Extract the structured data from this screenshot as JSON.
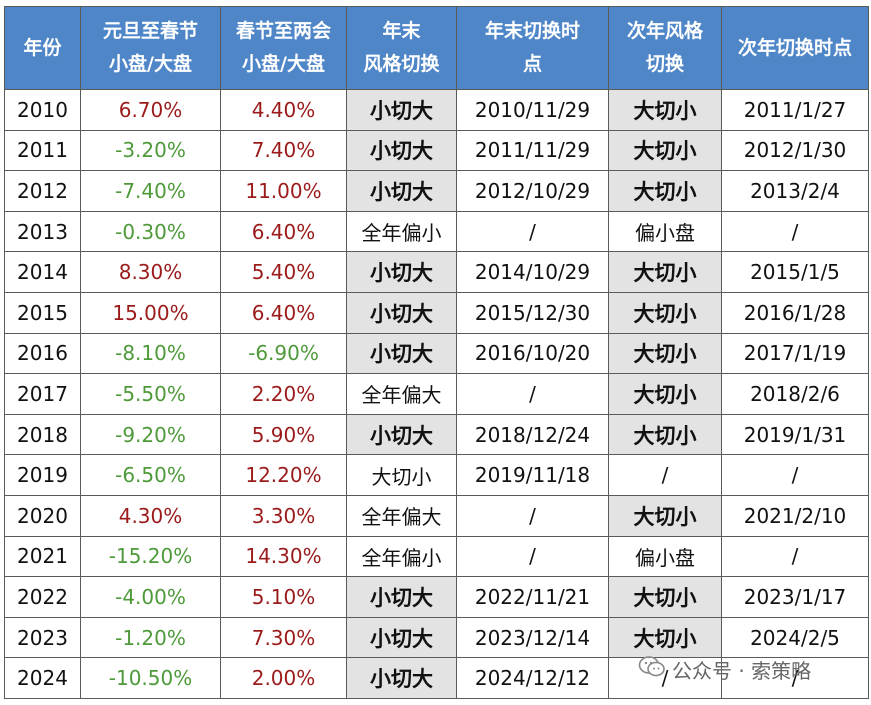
{
  "headers": [
    {
      "l1": "年份",
      "l2": ""
    },
    {
      "l1": "元旦至春节",
      "l2": "小盘/大盘"
    },
    {
      "l1": "春节至两会",
      "l2": "小盘/大盘"
    },
    {
      "l1": "年末",
      "l2": "风格切换"
    },
    {
      "l1": "年末切换时",
      "l2": "点"
    },
    {
      "l1": "次年风格",
      "l2": "切换"
    },
    {
      "l1": "次年切换时点",
      "l2": ""
    }
  ],
  "rows": [
    {
      "year": "2010",
      "c1": "6.70%",
      "c1s": "pos",
      "c2": "4.40%",
      "c2s": "pos",
      "style": "小切大",
      "styleb": true,
      "time": "2010/11/29",
      "next": "大切小",
      "nextb": true,
      "ntime": "2011/1/27"
    },
    {
      "year": "2011",
      "c1": "-3.20%",
      "c1s": "neg",
      "c2": "7.40%",
      "c2s": "pos",
      "style": "小切大",
      "styleb": true,
      "time": "2011/11/29",
      "next": "大切小",
      "nextb": true,
      "ntime": "2012/1/30"
    },
    {
      "year": "2012",
      "c1": "-7.40%",
      "c1s": "neg",
      "c2": "11.00%",
      "c2s": "pos",
      "style": "小切大",
      "styleb": true,
      "time": "2012/10/29",
      "next": "大切小",
      "nextb": true,
      "ntime": "2013/2/4"
    },
    {
      "year": "2013",
      "c1": "-0.30%",
      "c1s": "neg",
      "c2": "6.40%",
      "c2s": "pos",
      "style": "全年偏小",
      "styleb": false,
      "time": "/",
      "next": "偏小盘",
      "nextb": false,
      "ntime": "/"
    },
    {
      "year": "2014",
      "c1": "8.30%",
      "c1s": "pos",
      "c2": "5.40%",
      "c2s": "pos",
      "style": "小切大",
      "styleb": true,
      "time": "2014/10/29",
      "next": "大切小",
      "nextb": true,
      "ntime": "2015/1/5"
    },
    {
      "year": "2015",
      "c1": "15.00%",
      "c1s": "pos",
      "c2": "6.40%",
      "c2s": "pos",
      "style": "小切大",
      "styleb": true,
      "time": "2015/12/30",
      "next": "大切小",
      "nextb": true,
      "ntime": "2016/1/28"
    },
    {
      "year": "2016",
      "c1": "-8.10%",
      "c1s": "neg",
      "c2": "-6.90%",
      "c2s": "neg",
      "style": "小切大",
      "styleb": true,
      "time": "2016/10/20",
      "next": "大切小",
      "nextb": true,
      "ntime": "2017/1/19"
    },
    {
      "year": "2017",
      "c1": "-5.50%",
      "c1s": "neg",
      "c2": "2.20%",
      "c2s": "pos",
      "style": "全年偏大",
      "styleb": false,
      "time": "/",
      "next": "大切小",
      "nextb": true,
      "ntime": "2018/2/6"
    },
    {
      "year": "2018",
      "c1": "-9.20%",
      "c1s": "neg",
      "c2": "5.90%",
      "c2s": "pos",
      "style": "小切大",
      "styleb": true,
      "time": "2018/12/24",
      "next": "大切小",
      "nextb": true,
      "ntime": "2019/1/31"
    },
    {
      "year": "2019",
      "c1": "-6.50%",
      "c1s": "neg",
      "c2": "12.20%",
      "c2s": "pos",
      "style": "大切小",
      "styleb": false,
      "time": "2019/11/18",
      "next": "/",
      "nextb": false,
      "ntime": "/"
    },
    {
      "year": "2020",
      "c1": "4.30%",
      "c1s": "pos",
      "c2": "3.30%",
      "c2s": "pos",
      "style": "全年偏大",
      "styleb": false,
      "time": "/",
      "next": "大切小",
      "nextb": true,
      "ntime": "2021/2/10"
    },
    {
      "year": "2021",
      "c1": "-15.20%",
      "c1s": "neg",
      "c2": "14.30%",
      "c2s": "pos",
      "style": "全年偏小",
      "styleb": false,
      "time": "/",
      "next": "偏小盘",
      "nextb": false,
      "ntime": "/"
    },
    {
      "year": "2022",
      "c1": "-4.00%",
      "c1s": "neg",
      "c2": "5.10%",
      "c2s": "pos",
      "style": "小切大",
      "styleb": true,
      "time": "2022/11/21",
      "next": "大切小",
      "nextb": true,
      "ntime": "2023/1/17"
    },
    {
      "year": "2023",
      "c1": "-1.20%",
      "c1s": "neg",
      "c2": "7.30%",
      "c2s": "pos",
      "style": "小切大",
      "styleb": true,
      "time": "2023/12/14",
      "next": "大切小",
      "nextb": true,
      "ntime": "2024/2/5"
    },
    {
      "year": "2024",
      "c1": "-10.50%",
      "c1s": "neg",
      "c2": "2.00%",
      "c2s": "pos",
      "style": "小切大",
      "styleb": true,
      "time": "2024/12/12",
      "next": "/",
      "nextb": false,
      "ntime": "/"
    }
  ],
  "watermark": {
    "text": "公众号 · 索策略",
    "icon": "wechat-icon"
  },
  "colors": {
    "header_bg": "#4f86c8",
    "positive": "#9b1b1b",
    "negative": "#4e9a3a",
    "highlight_bg": "#e3e3e3"
  }
}
